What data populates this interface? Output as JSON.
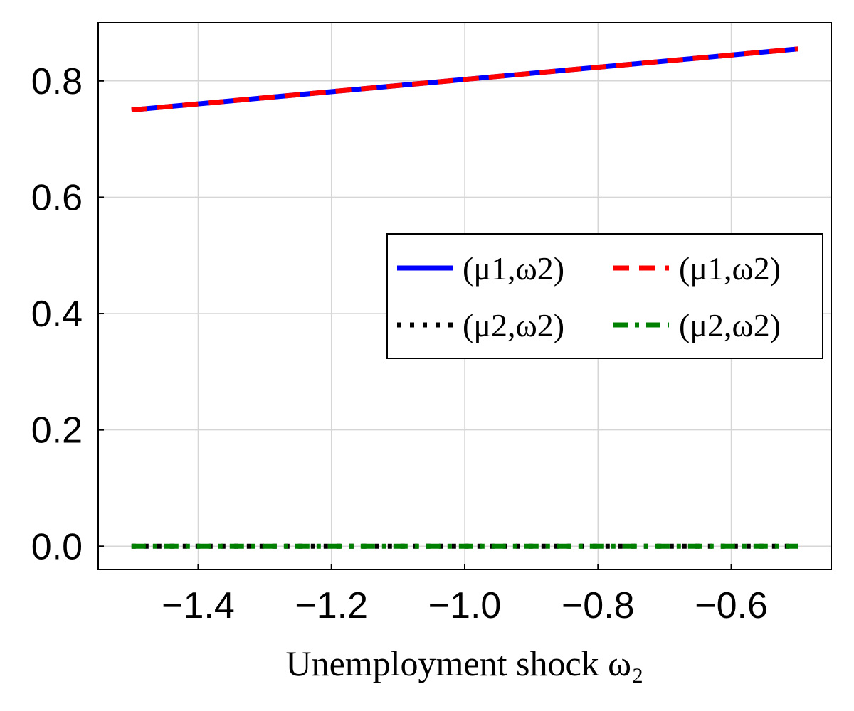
{
  "chart_data": {
    "type": "line",
    "title": "",
    "xlabel": "Unemployment shock ω₂",
    "ylabel": "",
    "xlim": [
      -1.55,
      -0.45
    ],
    "ylim": [
      -0.04,
      0.9
    ],
    "xticks": [
      -1.4,
      -1.2,
      -1.0,
      -0.8,
      -0.6
    ],
    "xtick_labels": [
      "−1.4",
      "−1.2",
      "−1.0",
      "−0.8",
      "−0.6"
    ],
    "yticks": [
      0.0,
      0.2,
      0.4,
      0.6,
      0.8
    ],
    "ytick_labels": [
      "0.0",
      "0.2",
      "0.4",
      "0.6",
      "0.8"
    ],
    "grid": true,
    "legend_position": "right",
    "series": [
      {
        "name": "(μ1,ω2)",
        "color": "#0000ff",
        "style": "solid",
        "x": [
          -1.5,
          -0.5
        ],
        "y": [
          0.75,
          0.855
        ]
      },
      {
        "name": "(μ1,ω2)",
        "color": "#ff0000",
        "style": "dashed",
        "x": [
          -1.5,
          -0.5
        ],
        "y": [
          0.75,
          0.855
        ]
      },
      {
        "name": "(μ2,ω2)",
        "color": "#000000",
        "style": "dotted",
        "x": [
          -1.5,
          -0.5
        ],
        "y": [
          0.0,
          0.0
        ]
      },
      {
        "name": "(μ2,ω2)",
        "color": "#008000",
        "style": "dashdot",
        "x": [
          -1.5,
          -0.5
        ],
        "y": [
          0.0,
          0.0
        ]
      }
    ]
  }
}
